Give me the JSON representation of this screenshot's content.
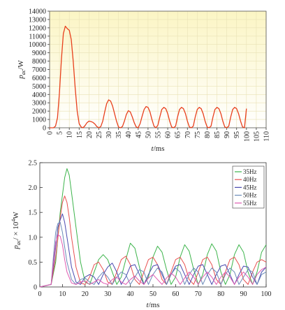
{
  "chart_data": [
    {
      "type": "line",
      "title": "",
      "xlabel_italic": "t",
      "xlabel_unit": "/ms",
      "ylabel_var": "p",
      "ylabel_sub": "ac",
      "ylabel_unit": "/W",
      "xlim": [
        0,
        110
      ],
      "ylim": [
        0,
        14000
      ],
      "xticks": [
        "0",
        "5",
        "10",
        "15",
        "20",
        "25",
        "30",
        "35",
        "40",
        "45",
        "50",
        "55",
        "60",
        "65",
        "70",
        "75",
        "80",
        "85",
        "90",
        "95",
        "100",
        "105",
        "110"
      ],
      "yticks": [
        "0",
        "1000",
        "2000",
        "3000",
        "4000",
        "5000",
        "6000",
        "7000",
        "8000",
        "9000",
        "10000",
        "11000",
        "12000",
        "13000",
        "14000"
      ],
      "background_color": "#fbf5c4",
      "series": [
        {
          "color": "#e8401c",
          "x": [
            0,
            2,
            3,
            4,
            5,
            6,
            7,
            8,
            9,
            10,
            11,
            12,
            13,
            14,
            15,
            16,
            17,
            18,
            19,
            20,
            21,
            22,
            23,
            24,
            25,
            26,
            27,
            28,
            29,
            30,
            31,
            32,
            33,
            34,
            35,
            36,
            37,
            38,
            39,
            40,
            41,
            42,
            43,
            44,
            45,
            46,
            47,
            48,
            49,
            50,
            51,
            52,
            53,
            54,
            55,
            56,
            57,
            58,
            59,
            60,
            61,
            62,
            63,
            64,
            65,
            66,
            67,
            68,
            69,
            70,
            71,
            72,
            73,
            74,
            75,
            76,
            77,
            78,
            79,
            80,
            81,
            82,
            83,
            84,
            85,
            86,
            87,
            88,
            89,
            90,
            91,
            92,
            93,
            94,
            95,
            96,
            97,
            98,
            99,
            100
          ],
          "y": [
            0,
            0,
            200,
            1200,
            4200,
            8200,
            11300,
            12200,
            11900,
            11700,
            10600,
            8000,
            4800,
            2000,
            500,
            100,
            0,
            250,
            600,
            800,
            750,
            650,
            450,
            150,
            0,
            150,
            800,
            1900,
            2900,
            3350,
            3200,
            2600,
            1700,
            800,
            100,
            0,
            150,
            800,
            1600,
            2050,
            1900,
            1300,
            600,
            100,
            0,
            500,
            1400,
            2200,
            2550,
            2450,
            1900,
            1000,
            200,
            0,
            300,
            1300,
            2200,
            2450,
            2300,
            1700,
            800,
            100,
            0,
            200,
            1300,
            2200,
            2450,
            2300,
            1700,
            800,
            100,
            0,
            200,
            1300,
            2200,
            2450,
            2300,
            1700,
            800,
            100,
            0,
            200,
            1300,
            2200,
            2450,
            2300,
            1700,
            800,
            100,
            0,
            200,
            1300,
            2200,
            2450,
            2300,
            1700,
            800,
            100,
            0,
            2300
          ]
        }
      ]
    },
    {
      "type": "line",
      "title": "",
      "xlabel_italic": "t",
      "xlabel_unit": "/ms",
      "ylabel_var": "p",
      "ylabel_sub": "ac",
      "ylabel_unit": "/ × 10",
      "ylabel_sup": "4",
      "ylabel_unit2": "W",
      "xlim": [
        0,
        100
      ],
      "ylim": [
        0,
        2.5
      ],
      "xticks": [
        "0",
        "10",
        "20",
        "30",
        "40",
        "50",
        "60",
        "70",
        "80",
        "90",
        "100"
      ],
      "yticks": [
        "0",
        "0.5",
        "1.0",
        "1.5",
        "2.0",
        "2.5"
      ],
      "legend_position": "top-right",
      "series": [
        {
          "name": "35Hz",
          "color": "#3cb44b",
          "x": [
            0,
            5,
            7,
            9,
            11,
            12,
            13,
            14,
            16,
            18,
            20,
            22,
            24,
            26,
            28,
            30,
            32,
            34,
            36,
            38,
            40,
            42,
            44,
            46,
            48,
            50,
            52,
            54,
            56,
            58,
            60,
            62,
            64,
            66,
            68,
            70,
            72,
            74,
            76,
            78,
            80,
            82,
            84,
            86,
            88,
            90,
            92,
            94,
            96,
            98,
            100
          ],
          "y": [
            0,
            0.05,
            0.5,
            1.5,
            2.2,
            2.38,
            2.25,
            1.9,
            1.2,
            0.5,
            0.1,
            0.05,
            0.3,
            0.55,
            0.65,
            0.55,
            0.3,
            0.05,
            0.2,
            0.55,
            0.88,
            0.78,
            0.4,
            0.05,
            0.2,
            0.6,
            0.82,
            0.7,
            0.35,
            0.05,
            0.2,
            0.6,
            0.85,
            0.72,
            0.35,
            0.05,
            0.25,
            0.65,
            0.87,
            0.72,
            0.3,
            0.05,
            0.25,
            0.65,
            0.85,
            0.7,
            0.3,
            0.05,
            0.3,
            0.7,
            0.85
          ]
        },
        {
          "name": "40Hz",
          "color": "#e85050",
          "x": [
            0,
            5,
            7,
            9,
            10,
            11,
            12,
            13,
            14,
            16,
            18,
            20,
            22,
            24,
            26,
            28,
            30,
            32,
            34,
            36,
            38,
            40,
            42,
            44,
            46,
            48,
            50,
            52,
            54,
            56,
            58,
            60,
            62,
            64,
            66,
            68,
            70,
            72,
            74,
            76,
            78,
            80,
            82,
            84,
            86,
            88,
            90,
            92,
            94,
            96,
            98,
            100
          ],
          "y": [
            0,
            0.05,
            0.6,
            1.4,
            1.7,
            1.83,
            1.7,
            1.4,
            1.0,
            0.4,
            0.08,
            0.05,
            0.2,
            0.45,
            0.5,
            0.35,
            0.1,
            0.05,
            0.3,
            0.55,
            0.62,
            0.45,
            0.15,
            0.05,
            0.3,
            0.55,
            0.6,
            0.45,
            0.15,
            0.05,
            0.3,
            0.55,
            0.6,
            0.45,
            0.15,
            0.05,
            0.3,
            0.55,
            0.6,
            0.45,
            0.15,
            0.05,
            0.3,
            0.55,
            0.6,
            0.45,
            0.15,
            0.05,
            0.3,
            0.5,
            0.55,
            0.5
          ]
        },
        {
          "name": "45Hz",
          "color": "#4a4ab0",
          "x": [
            0,
            5,
            7,
            8,
            9,
            10,
            11,
            12,
            14,
            16,
            18,
            20,
            22,
            24,
            26,
            28,
            30,
            32,
            34,
            36,
            38,
            40,
            42,
            44,
            46,
            48,
            50,
            52,
            54,
            56,
            58,
            60,
            62,
            64,
            66,
            68,
            70,
            72,
            74,
            76,
            78,
            80,
            82,
            84,
            86,
            88,
            90,
            92,
            94,
            96,
            98,
            100
          ],
          "y": [
            0,
            0.05,
            0.8,
            1.2,
            1.35,
            1.47,
            1.3,
            1.0,
            0.4,
            0.1,
            0.05,
            0.2,
            0.25,
            0.2,
            0.05,
            0.25,
            0.4,
            0.48,
            0.3,
            0.05,
            0.2,
            0.42,
            0.45,
            0.25,
            0.05,
            0.25,
            0.42,
            0.45,
            0.25,
            0.05,
            0.25,
            0.42,
            0.45,
            0.25,
            0.05,
            0.25,
            0.42,
            0.45,
            0.25,
            0.05,
            0.25,
            0.42,
            0.45,
            0.25,
            0.05,
            0.25,
            0.42,
            0.4,
            0.2,
            0.05,
            0.3,
            0.4
          ]
        },
        {
          "name": "50Hz",
          "color": "#6a8ab8",
          "x": [
            0,
            5,
            6,
            7,
            8,
            9,
            10,
            11,
            12,
            14,
            16,
            18,
            20,
            22,
            24,
            26,
            28,
            30,
            32,
            34,
            36,
            38,
            40,
            42,
            44,
            46,
            48,
            50,
            52,
            54,
            56,
            58,
            60,
            62,
            64,
            66,
            68,
            70,
            72,
            74,
            76,
            78,
            80,
            82,
            84,
            86,
            88,
            90,
            92,
            94,
            96,
            98,
            100
          ],
          "y": [
            0,
            0.05,
            0.6,
            1.1,
            1.28,
            1.3,
            1.1,
            0.8,
            0.5,
            0.15,
            0.05,
            0.15,
            0.18,
            0.1,
            0.05,
            0.2,
            0.3,
            0.2,
            0.05,
            0.2,
            0.3,
            0.25,
            0.05,
            0.2,
            0.35,
            0.3,
            0.05,
            0.25,
            0.38,
            0.3,
            0.05,
            0.25,
            0.38,
            0.3,
            0.05,
            0.25,
            0.38,
            0.3,
            0.05,
            0.25,
            0.38,
            0.3,
            0.05,
            0.25,
            0.38,
            0.3,
            0.05,
            0.2,
            0.35,
            0.3,
            0.05,
            0.25,
            0.3
          ]
        },
        {
          "name": "55Hz",
          "color": "#e05ab0",
          "x": [
            0,
            5,
            6,
            7,
            8,
            9,
            10,
            11,
            12,
            14,
            16,
            18,
            20,
            22,
            24,
            26,
            28,
            30,
            32,
            34,
            36,
            38,
            40,
            42,
            44,
            46,
            48,
            50,
            52,
            54,
            56,
            58,
            60,
            62,
            64,
            66,
            68,
            70,
            72,
            74,
            76,
            78,
            80,
            82,
            84,
            86,
            88,
            90,
            92,
            94,
            96,
            98,
            100
          ],
          "y": [
            0,
            0.05,
            0.5,
            0.9,
            1.05,
            1.02,
            0.85,
            0.55,
            0.3,
            0.08,
            0.05,
            0.1,
            0.12,
            0.05,
            0.1,
            0.15,
            0.08,
            0.05,
            0.15,
            0.2,
            0.1,
            0.05,
            0.15,
            0.22,
            0.12,
            0.05,
            0.18,
            0.25,
            0.15,
            0.05,
            0.18,
            0.28,
            0.2,
            0.05,
            0.18,
            0.3,
            0.2,
            0.05,
            0.2,
            0.3,
            0.2,
            0.05,
            0.2,
            0.3,
            0.2,
            0.05,
            0.2,
            0.3,
            0.2,
            0.05,
            0.25,
            0.35,
            0.4
          ]
        }
      ]
    }
  ]
}
